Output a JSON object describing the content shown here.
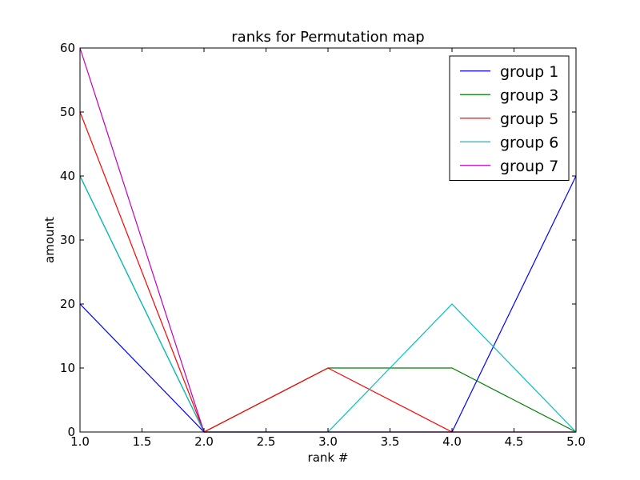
{
  "chart_data": {
    "type": "line",
    "title": "ranks for Permutation map",
    "xlabel": "rank #",
    "ylabel": "amount",
    "xlim": [
      1.0,
      5.0
    ],
    "ylim": [
      0,
      60
    ],
    "xticks": [
      "1.0",
      "1.5",
      "2.0",
      "2.5",
      "3.0",
      "3.5",
      "4.0",
      "4.5",
      "5.0"
    ],
    "yticks": [
      "0",
      "10",
      "20",
      "30",
      "40",
      "50",
      "60"
    ],
    "grid": false,
    "legend_position": "top-right",
    "x": [
      1,
      2,
      3,
      4,
      5
    ],
    "series": [
      {
        "name": "group 1",
        "color": "#0000ff",
        "values": [
          20,
          0,
          0,
          0,
          40
        ]
      },
      {
        "name": "group 3",
        "color": "#008000",
        "values": [
          40,
          0,
          10,
          10,
          0
        ]
      },
      {
        "name": "group 5",
        "color": "#ff0000",
        "values": [
          50,
          0,
          10,
          0,
          0
        ]
      },
      {
        "name": "group 6",
        "color": "#00bfbf",
        "values": [
          40,
          0,
          0,
          20,
          0
        ]
      },
      {
        "name": "group 7",
        "color": "#bf00bf",
        "values": [
          60,
          0,
          0,
          0,
          0
        ]
      }
    ]
  }
}
